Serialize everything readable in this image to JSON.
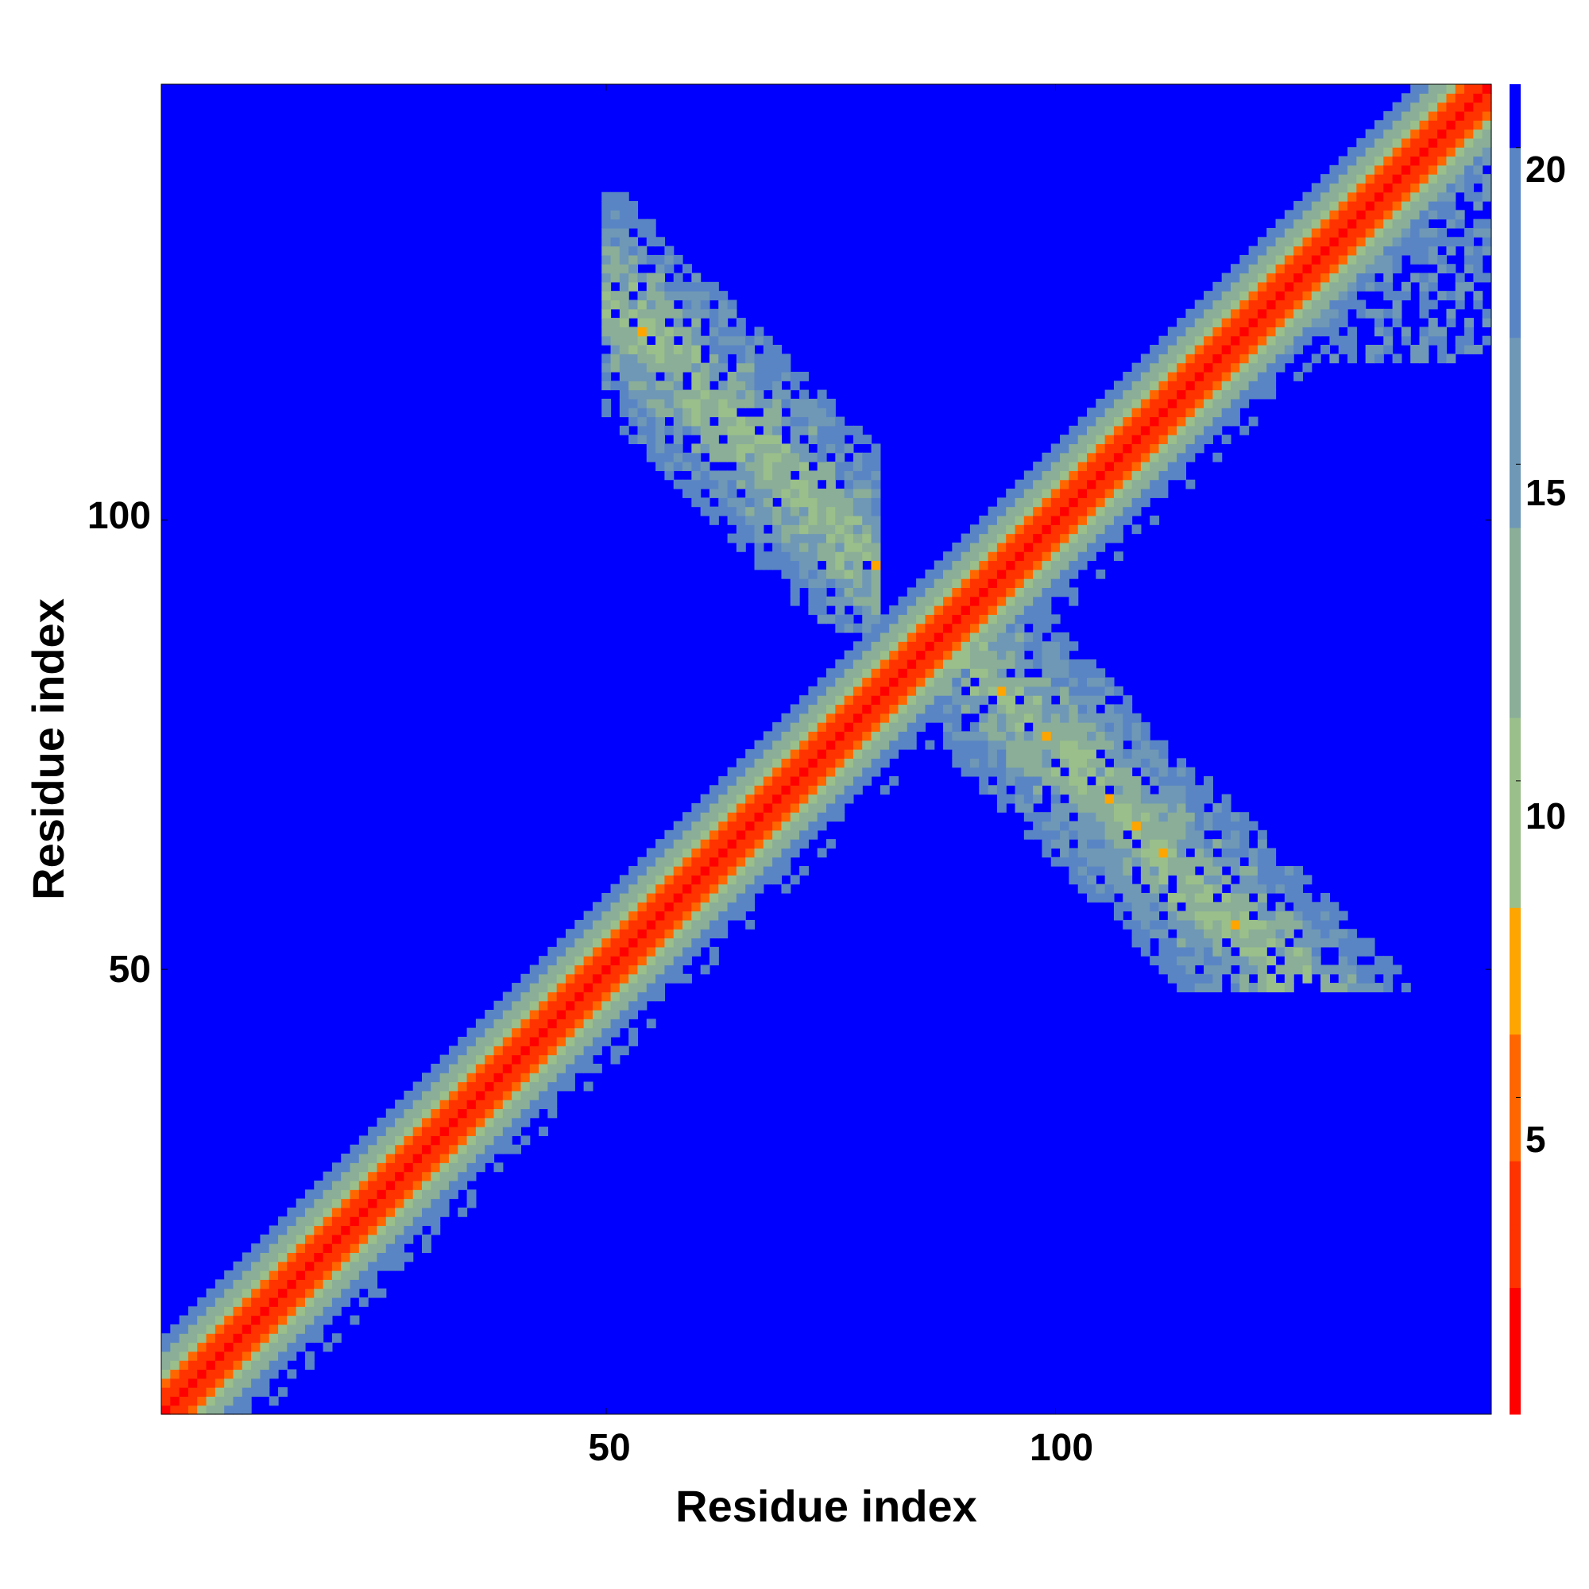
{
  "chart_data": {
    "type": "heatmap",
    "title": "",
    "xlabel": "Residue index",
    "ylabel": "Residue index",
    "xlim": [
      1,
      148
    ],
    "ylim": [
      1,
      148
    ],
    "x_ticks": [
      50,
      100
    ],
    "y_ticks": [
      50,
      100
    ],
    "x_tick_labels": [
      "50",
      "100"
    ],
    "y_tick_labels": [
      "50",
      "100"
    ],
    "colorbar": {
      "ticks": [
        5,
        10,
        15,
        20
      ],
      "tick_labels": [
        "5",
        "10",
        "15",
        "20"
      ],
      "range": [
        0,
        21
      ],
      "colors": {
        "very_close": "#ff0000",
        "close": "#ff6600",
        "mid": "#ffa500",
        "light": "#9bbf8a",
        "far": "#5a85c4",
        "background": "#0000ff"
      }
    },
    "description_values": {
      "diagonal_value": 0,
      "background_value": 21,
      "contact_value_range": [
        6,
        18
      ]
    },
    "cross_contacts": {
      "helix_antidiagonal_center_residue": 87,
      "arm_upper_left_x": [
        50,
        75
      ],
      "arm_upper_left_y": [
        115,
        145
      ],
      "arm_lower_right_x": [
        100,
        140
      ],
      "arm_lower_right_y": [
        48,
        80
      ]
    },
    "grid": false
  }
}
